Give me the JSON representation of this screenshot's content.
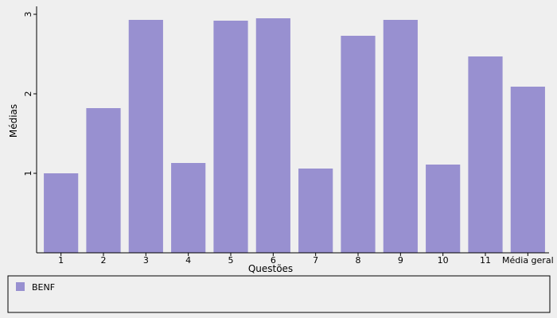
{
  "chart_data": {
    "type": "bar",
    "categories": [
      "1",
      "2",
      "3",
      "4",
      "5",
      "6",
      "7",
      "8",
      "9",
      "10",
      "11",
      "Média geral"
    ],
    "series": [
      {
        "name": "BENF",
        "values": [
          1.0,
          1.82,
          2.93,
          1.13,
          2.92,
          2.95,
          1.06,
          2.73,
          2.93,
          1.11,
          2.47,
          2.09
        ]
      }
    ],
    "xlabel": "Questões",
    "ylabel": "Médias",
    "ylim": [
      0,
      3.1
    ],
    "yticks": [
      1,
      2,
      3
    ],
    "grid": false,
    "legend_position": "bottom",
    "bar_color": "#9890d0"
  }
}
